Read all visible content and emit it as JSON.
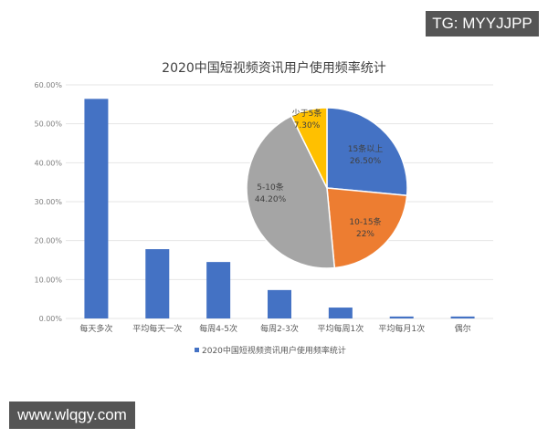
{
  "watermarks": {
    "top_right": "TG: MYYJJPP",
    "bottom_left": "www.wlqgy.com"
  },
  "chart_data": [
    {
      "type": "bar",
      "title": "2020中国短视频资讯用户使用频率统计",
      "categories": [
        "每天多次",
        "平均每天一次",
        "每周4-5次",
        "每周2-3次",
        "平均每周1次",
        "平均每月1次",
        "偶尔"
      ],
      "values": [
        56.4,
        17.8,
        14.5,
        7.3,
        2.8,
        0.5,
        0.5
      ],
      "xlabel": "",
      "ylabel": "",
      "ylim": [
        0,
        60
      ],
      "yticks": [
        "0.00%",
        "10.00%",
        "20.00%",
        "30.00%",
        "40.00%",
        "50.00%",
        "60.00%"
      ],
      "grid": true,
      "legend": {
        "position": "bottom",
        "entries": [
          "2020中国短视频资讯用户使用频率统计"
        ]
      },
      "color": "#4472C4"
    },
    {
      "type": "pie",
      "title": "",
      "slices": [
        {
          "label": "15条以上",
          "value": 26.5,
          "display": "26.50%",
          "color": "#4472C4"
        },
        {
          "label": "10-15条",
          "value": 22.0,
          "display": "22%",
          "color": "#ED7D31"
        },
        {
          "label": "5-10条",
          "value": 44.2,
          "display": "44.20%",
          "color": "#A5A5A5"
        },
        {
          "label": "少于5条",
          "value": 7.3,
          "display": "7.30%",
          "color": "#FFC000"
        }
      ]
    }
  ]
}
